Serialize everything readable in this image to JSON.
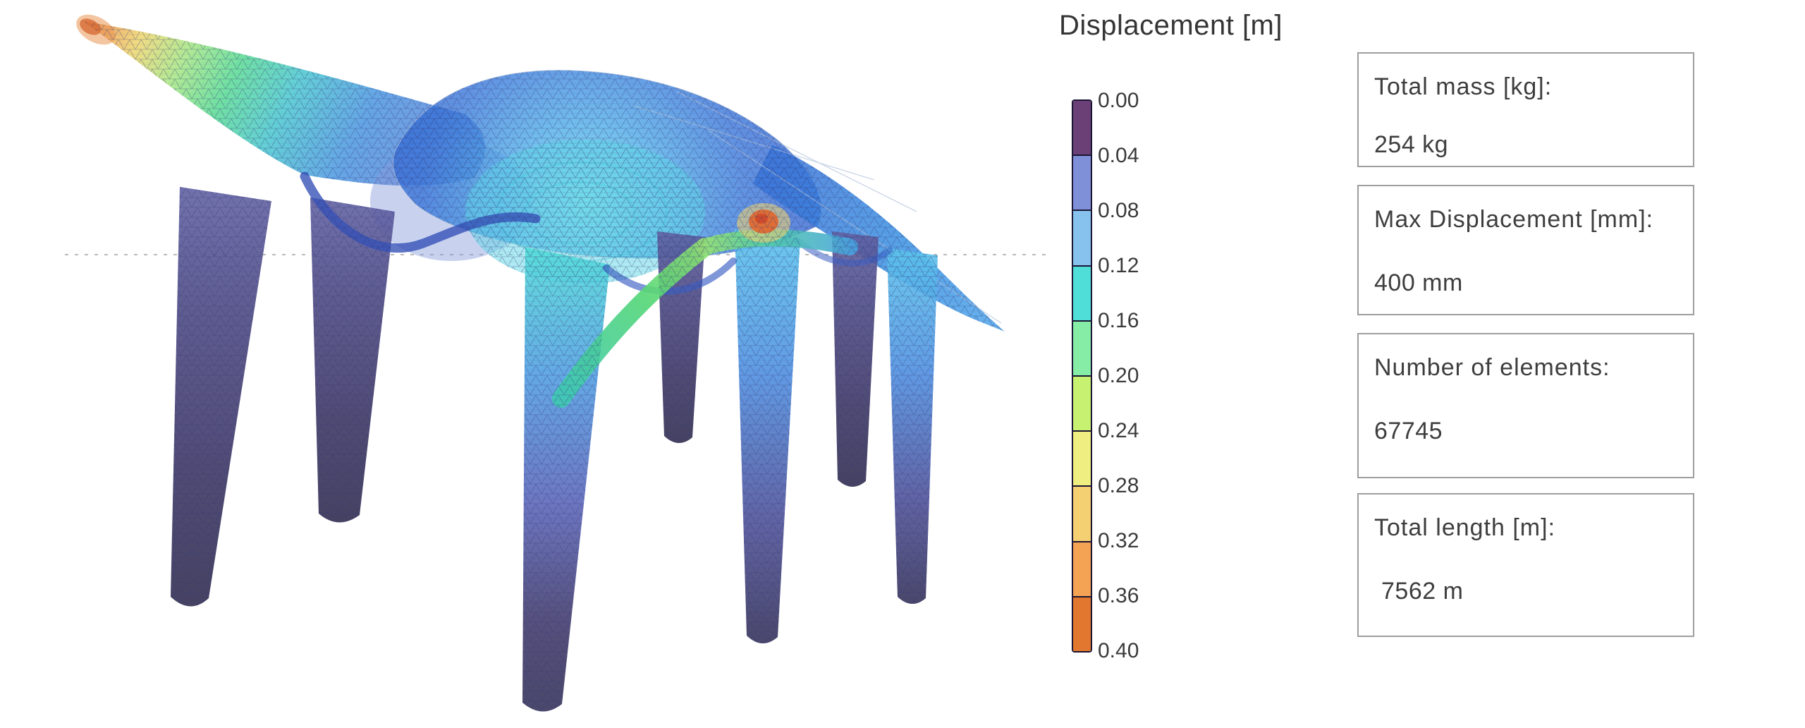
{
  "legend": {
    "title": "Displacement [m]",
    "ticks": [
      "0.00",
      "0.04",
      "0.08",
      "0.12",
      "0.16",
      "0.20",
      "0.24",
      "0.28",
      "0.32",
      "0.36",
      "0.40"
    ],
    "colors": [
      "#6b4077",
      "#8090d8",
      "#87c2ef",
      "#50dfd8",
      "#85eda6",
      "#c7f170",
      "#efee80",
      "#f5d073",
      "#f4a355",
      "#e27830"
    ],
    "border_color": "#1b1534"
  },
  "stats": [
    {
      "label": "Total mass [kg]:",
      "value": "254 kg"
    },
    {
      "label": "Max Displacement [mm]:",
      "value": "400 mm"
    },
    {
      "label": "Number of elements:",
      "value": "67745"
    },
    {
      "label": "Total length [m]:",
      "value": "7562 m"
    }
  ]
}
